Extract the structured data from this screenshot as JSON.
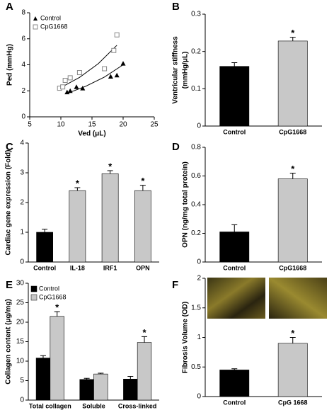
{
  "chart_data": [
    {
      "panel": "A",
      "type": "scatter",
      "xlabel": "Ved (μL)",
      "ylabel": "Ped (mmHg)",
      "xlim": [
        5,
        25
      ],
      "xticks": [
        5,
        10,
        15,
        20,
        25
      ],
      "ylim": [
        0,
        8
      ],
      "yticks": [
        0,
        2,
        4,
        6,
        8
      ],
      "series": [
        {
          "name": "Control",
          "color": "#000000",
          "marker": "triangle",
          "x": [
            11,
            11.5,
            12.5,
            13.5,
            18,
            19,
            20
          ],
          "values": [
            1.9,
            2.0,
            2.3,
            2.2,
            3.1,
            3.2,
            4.1
          ],
          "fit": {
            "x": [
              11,
              14,
              17,
              20
            ],
            "values": [
              1.8,
              2.35,
              3.06,
              4.0
            ]
          }
        },
        {
          "name": "CpG1668",
          "color": "#888888",
          "marker": "square",
          "x": [
            9.8,
            10.3,
            10.7,
            11.5,
            13,
            17,
            18.5,
            19
          ],
          "values": [
            2.2,
            2.3,
            2.8,
            3.0,
            3.4,
            3.7,
            5.1,
            6.3
          ],
          "fit": {
            "x": [
              9.8,
              13,
              16,
              19
            ],
            "values": [
              2.2,
              3.03,
              4.08,
              5.5
            ]
          }
        }
      ]
    },
    {
      "panel": "B",
      "type": "bar",
      "ylabel": [
        "Ventricular stiffness",
        "(mmHg/μL)"
      ],
      "categories": [
        "Control",
        "CpG1668"
      ],
      "values": [
        0.16,
        0.228
      ],
      "errors": [
        0.01,
        0.01
      ],
      "colors": [
        "#000000",
        "#c8c8c8"
      ],
      "star_label": "*",
      "starred": [
        false,
        true
      ],
      "ylim": [
        0,
        0.3
      ],
      "yticks": [
        0,
        0.1,
        0.2,
        0.3
      ]
    },
    {
      "panel": "C",
      "type": "bar",
      "ylabel": "Cardiac gene expression (Fold)",
      "categories": [
        "Control",
        "IL-18",
        "IRF1",
        "OPN"
      ],
      "values": [
        1.0,
        2.4,
        2.97,
        2.4
      ],
      "errors": [
        0.1,
        0.1,
        0.1,
        0.18
      ],
      "colors": [
        "#000000",
        "#c8c8c8",
        "#c8c8c8",
        "#c8c8c8"
      ],
      "star_label": "*",
      "starred": [
        false,
        true,
        true,
        true
      ],
      "ylim": [
        0,
        4
      ],
      "yticks": [
        0,
        1,
        2,
        3,
        4
      ]
    },
    {
      "panel": "D",
      "type": "bar",
      "ylabel": "OPN (ng/mg total protein)",
      "categories": [
        "Control",
        "CpG1668"
      ],
      "values": [
        0.21,
        0.58
      ],
      "errors": [
        0.05,
        0.04
      ],
      "colors": [
        "#000000",
        "#c8c8c8"
      ],
      "star_label": "*",
      "starred": [
        false,
        true
      ],
      "ylim": [
        0,
        0.8
      ],
      "yticks": [
        0,
        0.2,
        0.4,
        0.6,
        0.8
      ]
    },
    {
      "panel": "E",
      "type": "bar",
      "ylabel": "Collagen content (μg/mg)",
      "categories": [
        "Total collagen",
        "Soluble",
        "Cross-linked"
      ],
      "star_label": "*",
      "series": [
        {
          "name": "Control",
          "color": "#000000",
          "values": [
            10.8,
            5.3,
            5.4
          ],
          "errors": [
            0.6,
            0.3,
            0.7
          ],
          "starred": [
            false,
            false,
            false
          ]
        },
        {
          "name": "CpG1668",
          "color": "#c8c8c8",
          "values": [
            21.5,
            6.7,
            14.8
          ],
          "errors": [
            1.2,
            0.2,
            1.5
          ],
          "starred": [
            true,
            false,
            true
          ]
        }
      ],
      "ylim": [
        0,
        30
      ],
      "yticks": [
        0,
        5,
        10,
        15,
        20,
        25,
        30
      ]
    },
    {
      "panel": "F",
      "type": "bar",
      "ylabel": "Fibrosis Volume (OD)",
      "categories": [
        "Control",
        "CpG 1668"
      ],
      "values": [
        0.45,
        0.9
      ],
      "errors": [
        0.02,
        0.1
      ],
      "colors": [
        "#000000",
        "#c8c8c8"
      ],
      "star_label": "*",
      "starred": [
        false,
        true
      ],
      "ylim": [
        0,
        2
      ],
      "yticks": [
        0,
        0.5,
        1,
        1.5,
        2
      ]
    }
  ]
}
